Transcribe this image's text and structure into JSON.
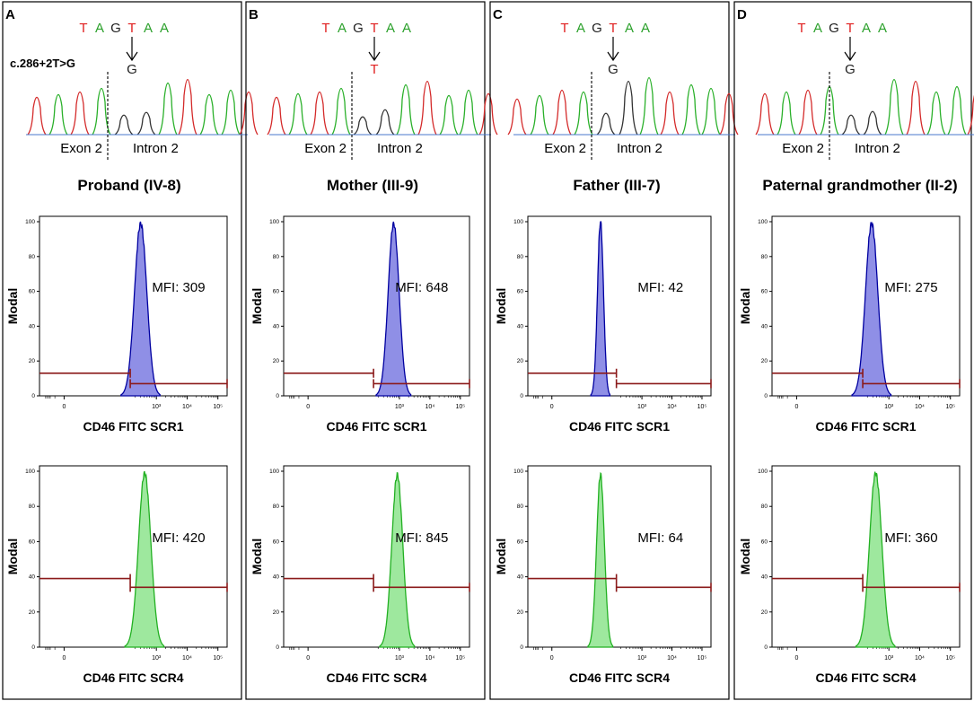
{
  "figure": {
    "panels": [
      {
        "letter": "A",
        "seq": [
          "T",
          "A",
          "G",
          "T",
          "A",
          "A"
        ],
        "seq_colors": [
          "#e02020",
          "#2aa02a",
          "#222222",
          "#e02020",
          "#2aa02a",
          "#2aa02a"
        ],
        "mut_base": "G",
        "mut_color": "#222222",
        "mutation_label": "c.286+2T>G",
        "exon_label": "Exon 2",
        "intron_label": "Intron 2",
        "subject": "Proband  (IV-8)"
      },
      {
        "letter": "B",
        "seq": [
          "T",
          "A",
          "G",
          "T",
          "A",
          "A"
        ],
        "seq_colors": [
          "#e02020",
          "#2aa02a",
          "#222222",
          "#e02020",
          "#2aa02a",
          "#2aa02a"
        ],
        "mut_base": "T",
        "mut_color": "#e02020",
        "mutation_label": "",
        "exon_label": "Exon 2",
        "intron_label": "Intron 2",
        "subject": "Mother  (III-9)"
      },
      {
        "letter": "C",
        "seq": [
          "T",
          "A",
          "G",
          "T",
          "A",
          "A"
        ],
        "seq_colors": [
          "#e02020",
          "#2aa02a",
          "#222222",
          "#e02020",
          "#2aa02a",
          "#2aa02a"
        ],
        "mut_base": "G",
        "mut_color": "#222222",
        "mutation_label": "",
        "exon_label": "Exon 2",
        "intron_label": "Intron 2",
        "subject": "Father (III-7)"
      },
      {
        "letter": "D",
        "seq": [
          "T",
          "A",
          "G",
          "T",
          "A",
          "A"
        ],
        "seq_colors": [
          "#e02020",
          "#2aa02a",
          "#222222",
          "#e02020",
          "#2aa02a",
          "#2aa02a"
        ],
        "mut_base": "G",
        "mut_color": "#222222",
        "mutation_label": "",
        "exon_label": "Exon 2",
        "intron_label": "Intron 2",
        "subject": "Paternal grandmother (II-2)"
      }
    ]
  },
  "chart_data": [
    {
      "type": "histogram",
      "panel": "A",
      "xlabel": "CD46 FITC SCR1",
      "ylabel": "Modal",
      "mfi_label": "MFI: 309",
      "peak_log10": 2.49,
      "peak_modal": 99,
      "width_log": 0.2,
      "fill": "#8f8fe6",
      "stroke": "#0000a0",
      "xlim": [
        -0.8,
        5.3
      ],
      "ylim": [
        0,
        100
      ],
      "yticks": [
        0,
        20,
        40,
        60,
        80,
        100
      ],
      "xticks": [
        "0",
        "10³",
        "10⁴",
        "10⁵"
      ],
      "gate_threshold_log10": 2.15,
      "gate_left_modal": 13,
      "gate_right_modal": 7
    },
    {
      "type": "histogram",
      "panel": "B",
      "xlabel": "CD46 FITC SCR1",
      "ylabel": "Modal",
      "mfi_label": "MFI: 648",
      "peak_log10": 2.81,
      "peak_modal": 99,
      "width_log": 0.18,
      "fill": "#8f8fe6",
      "stroke": "#0000a0",
      "xlim": [
        -0.8,
        5.3
      ],
      "ylim": [
        0,
        100
      ],
      "yticks": [
        0,
        20,
        40,
        60,
        80,
        100
      ],
      "xticks": [
        "0",
        "10³",
        "10⁴",
        "10⁵"
      ],
      "gate_threshold_log10": 2.15,
      "gate_left_modal": 13,
      "gate_right_modal": 7
    },
    {
      "type": "histogram",
      "panel": "C",
      "xlabel": "CD46 FITC SCR1",
      "ylabel": "Modal",
      "mfi_label": "MFI: 42",
      "peak_log10": 1.62,
      "peak_modal": 100,
      "width_log": 0.1,
      "fill": "#8f8fe6",
      "stroke": "#0000a0",
      "xlim": [
        -0.8,
        5.3
      ],
      "ylim": [
        0,
        100
      ],
      "yticks": [
        0,
        20,
        40,
        60,
        80,
        100
      ],
      "xticks": [
        "0",
        "10³",
        "10⁴",
        "10⁵"
      ],
      "gate_threshold_log10": 2.15,
      "gate_left_modal": 13,
      "gate_right_modal": 7
    },
    {
      "type": "histogram",
      "panel": "D",
      "xlabel": "CD46 FITC SCR1",
      "ylabel": "Modal",
      "mfi_label": "MFI: 275",
      "peak_log10": 2.44,
      "peak_modal": 99,
      "width_log": 0.2,
      "fill": "#8f8fe6",
      "stroke": "#0000a0",
      "xlim": [
        -0.8,
        5.3
      ],
      "ylim": [
        0,
        100
      ],
      "yticks": [
        0,
        20,
        40,
        60,
        80,
        100
      ],
      "xticks": [
        "0",
        "10³",
        "10⁴",
        "10⁵"
      ],
      "gate_threshold_log10": 2.15,
      "gate_left_modal": 13,
      "gate_right_modal": 7
    },
    {
      "type": "histogram",
      "panel": "A",
      "xlabel": "CD46 FITC SCR4",
      "ylabel": "Modal",
      "mfi_label": "MFI: 420",
      "peak_log10": 2.62,
      "peak_modal": 99,
      "width_log": 0.2,
      "fill": "#9ee89e",
      "stroke": "#22b022",
      "xlim": [
        -0.8,
        5.3
      ],
      "ylim": [
        0,
        100
      ],
      "yticks": [
        0,
        20,
        40,
        60,
        80,
        100
      ],
      "xticks": [
        "0",
        "10³",
        "10⁴",
        "10⁵"
      ],
      "gate_threshold_log10": 2.15,
      "gate_left_modal": 39,
      "gate_right_modal": 34
    },
    {
      "type": "histogram",
      "panel": "B",
      "xlabel": "CD46 FITC SCR4",
      "ylabel": "Modal",
      "mfi_label": "MFI: 845",
      "peak_log10": 2.93,
      "peak_modal": 98,
      "width_log": 0.18,
      "fill": "#9ee89e",
      "stroke": "#22b022",
      "xlim": [
        -0.8,
        5.3
      ],
      "ylim": [
        0,
        100
      ],
      "yticks": [
        0,
        20,
        40,
        60,
        80,
        100
      ],
      "xticks": [
        "0",
        "10³",
        "10⁴",
        "10⁵"
      ],
      "gate_threshold_log10": 2.15,
      "gate_left_modal": 39,
      "gate_right_modal": 34
    },
    {
      "type": "histogram",
      "panel": "C",
      "xlabel": "CD46 FITC SCR4",
      "ylabel": "Modal",
      "mfi_label": "MFI: 64",
      "peak_log10": 1.62,
      "peak_modal": 98,
      "width_log": 0.13,
      "fill": "#9ee89e",
      "stroke": "#22b022",
      "xlim": [
        -0.8,
        5.3
      ],
      "ylim": [
        0,
        100
      ],
      "yticks": [
        0,
        20,
        40,
        60,
        80,
        100
      ],
      "xticks": [
        "0",
        "10³",
        "10⁴",
        "10⁵"
      ],
      "gate_threshold_log10": 2.15,
      "gate_left_modal": 39,
      "gate_right_modal": 34
    },
    {
      "type": "histogram",
      "panel": "D",
      "xlabel": "CD46 FITC SCR4",
      "ylabel": "Modal",
      "mfi_label": "MFI: 360",
      "peak_log10": 2.57,
      "peak_modal": 99,
      "width_log": 0.2,
      "fill": "#9ee89e",
      "stroke": "#22b022",
      "xlim": [
        -0.8,
        5.3
      ],
      "ylim": [
        0,
        100
      ],
      "yticks": [
        0,
        20,
        40,
        60,
        80,
        100
      ],
      "xticks": [
        "0",
        "10³",
        "10⁴",
        "10⁵"
      ],
      "gate_threshold_log10": 2.15,
      "gate_left_modal": 39,
      "gate_right_modal": 34
    }
  ]
}
